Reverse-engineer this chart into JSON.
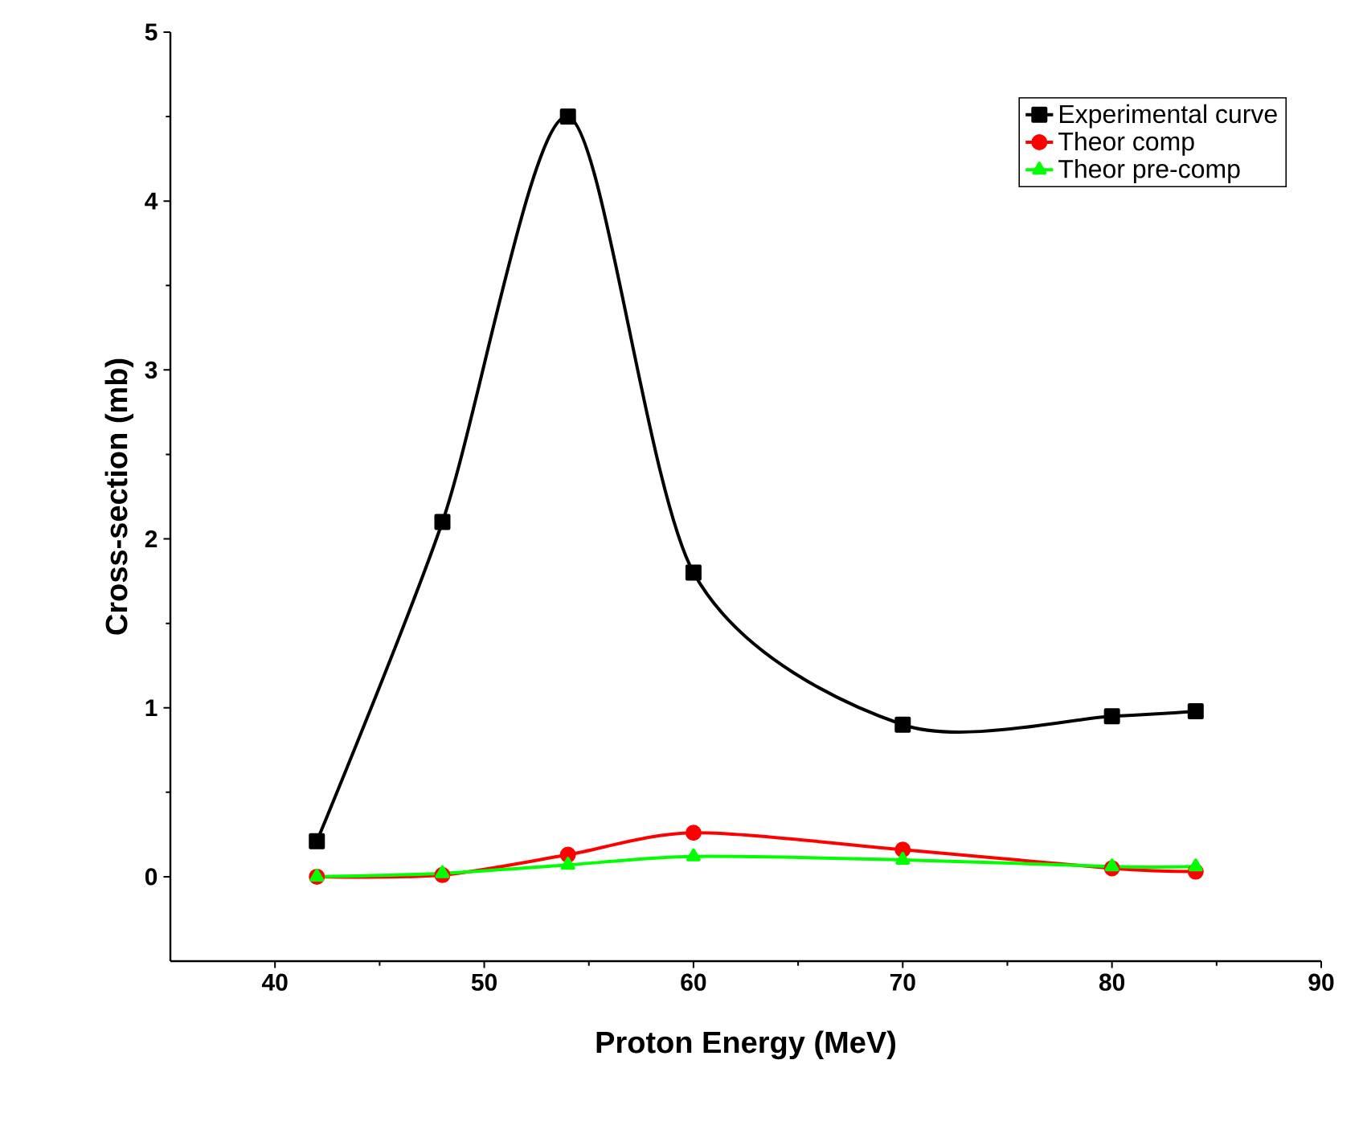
{
  "chart_data": {
    "type": "line",
    "xlabel": "Proton Energy (MeV)",
    "ylabel": "Cross-section (mb)",
    "x": [
      42,
      48,
      54,
      60,
      70,
      80,
      84
    ],
    "series": [
      {
        "name": "Experimental curve",
        "color": "#000000",
        "marker": "square",
        "values": [
          0.21,
          2.1,
          4.5,
          1.8,
          0.9,
          0.95,
          0.98
        ]
      },
      {
        "name": "Theor comp",
        "color": "#ff0000",
        "marker": "circle",
        "values": [
          0.0,
          0.01,
          0.13,
          0.26,
          0.16,
          0.05,
          0.03
        ]
      },
      {
        "name": "Theor pre-comp",
        "color": "#00ff00",
        "marker": "triangle",
        "values": [
          0.0,
          0.02,
          0.07,
          0.12,
          0.1,
          0.06,
          0.06
        ]
      }
    ],
    "xlim": [
      35,
      90
    ],
    "xticks": [
      40,
      50,
      60,
      70,
      80,
      90
    ],
    "ylim": [
      -0.5,
      5
    ],
    "yticks": [
      0,
      1,
      2,
      3,
      4,
      5
    ],
    "legend": "top right",
    "line_style": "solid",
    "grid": false
  }
}
